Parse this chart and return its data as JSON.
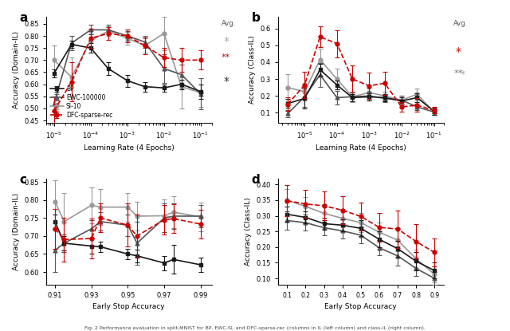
{
  "panel_a": {
    "xlabel": "Learning Rate (4 Epochs)",
    "ylabel": "Accuracy (Domain-IL)",
    "ylim": [
      0.44,
      0.88
    ],
    "x_vals": [
      1e-05,
      3e-05,
      0.0001,
      0.0003,
      0.001,
      0.003,
      0.01,
      0.03,
      0.1
    ],
    "BP": {
      "y": [
        0.645,
        0.765,
        0.75,
        0.665,
        0.615,
        0.59,
        0.585,
        0.6,
        0.57
      ],
      "err": [
        0.015,
        0.015,
        0.02,
        0.025,
        0.025,
        0.02,
        0.015,
        0.02,
        0.03
      ]
    },
    "EWC": {
      "y": [
        0.52,
        0.77,
        0.825,
        0.825,
        0.8,
        0.775,
        0.665,
        0.64,
        0.56
      ],
      "err": [
        0.03,
        0.03,
        0.02,
        0.02,
        0.02,
        0.025,
        0.06,
        0.04,
        0.065
      ]
    },
    "SI": {
      "y": [
        0.7,
        0.63,
        0.78,
        0.82,
        0.79,
        0.76,
        0.81,
        0.59,
        0.565
      ],
      "err": [
        0.06,
        0.08,
        0.03,
        0.02,
        0.025,
        0.03,
        0.07,
        0.09,
        0.06
      ]
    },
    "DFC": {
      "y": [
        0.49,
        0.61,
        0.79,
        0.81,
        0.8,
        0.76,
        0.71,
        0.7,
        0.7
      ],
      "err": [
        0.06,
        0.08,
        0.04,
        0.025,
        0.025,
        0.035,
        0.04,
        0.05,
        0.04
      ]
    }
  },
  "panel_b": {
    "xlabel": "Learning Rate (4 Epochs)",
    "ylabel": "Accuracy (Class-IL)",
    "ylim": [
      0.04,
      0.67
    ],
    "x_vals": [
      3e-06,
      1e-05,
      3e-05,
      0.0001,
      0.0003,
      0.001,
      0.003,
      0.01,
      0.03,
      0.1
    ],
    "BP": {
      "y": [
        0.155,
        0.185,
        0.355,
        0.265,
        0.19,
        0.195,
        0.19,
        0.17,
        0.19,
        0.11
      ],
      "err": [
        0.025,
        0.06,
        0.035,
        0.025,
        0.02,
        0.02,
        0.02,
        0.02,
        0.025,
        0.02
      ]
    },
    "EWC": {
      "y": [
        0.095,
        0.195,
        0.325,
        0.19,
        0.195,
        0.2,
        0.185,
        0.175,
        0.135,
        0.105
      ],
      "err": [
        0.02,
        0.06,
        0.07,
        0.04,
        0.025,
        0.025,
        0.02,
        0.025,
        0.02,
        0.015
      ]
    },
    "SI": {
      "y": [
        0.25,
        0.225,
        0.415,
        0.3,
        0.195,
        0.22,
        0.2,
        0.175,
        0.21,
        0.105
      ],
      "err": [
        0.08,
        0.05,
        0.065,
        0.06,
        0.03,
        0.025,
        0.025,
        0.025,
        0.035,
        0.015
      ]
    },
    "DFC": {
      "y": [
        0.15,
        0.265,
        0.55,
        0.51,
        0.3,
        0.26,
        0.275,
        0.135,
        0.145,
        0.115
      ],
      "err": [
        0.04,
        0.08,
        0.06,
        0.08,
        0.08,
        0.08,
        0.07,
        0.03,
        0.04,
        0.02
      ]
    }
  },
  "panel_c": {
    "xlabel": "Early Stop Accuracy",
    "ylabel": "Accuracy (Domain-IL)",
    "ylim": [
      0.565,
      0.86
    ],
    "x_vals": [
      0.91,
      0.915,
      0.93,
      0.935,
      0.95,
      0.955,
      0.97,
      0.975,
      0.99
    ],
    "BP": {
      "y": [
        0.74,
        0.68,
        0.672,
        0.67,
        0.65,
        0.645,
        0.625,
        0.635,
        0.62
      ],
      "err": [
        0.02,
        0.02,
        0.02,
        0.015,
        0.015,
        0.018,
        0.02,
        0.04,
        0.02
      ]
    },
    "EWC": {
      "y": [
        0.66,
        0.68,
        0.72,
        0.74,
        0.73,
        0.68,
        0.75,
        0.755,
        0.755
      ],
      "err": [
        0.06,
        0.025,
        0.025,
        0.025,
        0.03,
        0.06,
        0.04,
        0.035,
        0.03
      ]
    },
    "SI": {
      "y": [
        0.795,
        0.74,
        0.785,
        0.78,
        0.78,
        0.755,
        0.756,
        0.766,
        0.753
      ],
      "err": [
        0.06,
        0.08,
        0.05,
        0.05,
        0.04,
        0.04,
        0.045,
        0.045,
        0.04
      ]
    },
    "DFC": {
      "y": [
        0.72,
        0.69,
        0.693,
        0.75,
        0.73,
        0.7,
        0.745,
        0.748,
        0.733
      ],
      "err": [
        0.055,
        0.06,
        0.055,
        0.04,
        0.06,
        0.06,
        0.04,
        0.04,
        0.04
      ]
    }
  },
  "panel_d": {
    "xlabel": "Early Stop Accuracy",
    "ylabel": "Accuracy (Class-IL)",
    "ylim": [
      0.08,
      0.42
    ],
    "x_vals": [
      0.1,
      0.2,
      0.3,
      0.4,
      0.5,
      0.6,
      0.7,
      0.8,
      0.9
    ],
    "BP": {
      "y": [
        0.305,
        0.295,
        0.275,
        0.27,
        0.26,
        0.225,
        0.195,
        0.155,
        0.125
      ],
      "err": [
        0.025,
        0.02,
        0.02,
        0.02,
        0.025,
        0.025,
        0.025,
        0.03,
        0.025
      ]
    },
    "EWC": {
      "y": [
        0.285,
        0.278,
        0.262,
        0.252,
        0.238,
        0.198,
        0.172,
        0.132,
        0.1
      ],
      "err": [
        0.03,
        0.025,
        0.025,
        0.025,
        0.025,
        0.025,
        0.03,
        0.025,
        0.02
      ]
    },
    "SI": {
      "y": [
        0.35,
        0.33,
        0.308,
        0.292,
        0.278,
        0.248,
        0.222,
        0.163,
        0.113
      ],
      "err": [
        0.035,
        0.03,
        0.03,
        0.03,
        0.03,
        0.03,
        0.035,
        0.03,
        0.025
      ]
    },
    "DFC": {
      "y": [
        0.348,
        0.338,
        0.332,
        0.318,
        0.298,
        0.263,
        0.258,
        0.218,
        0.183
      ],
      "err": [
        0.05,
        0.045,
        0.045,
        0.045,
        0.045,
        0.045,
        0.06,
        0.055,
        0.045
      ]
    }
  },
  "colors": {
    "BP": "#1a1a1a",
    "EWC": "#555555",
    "SI": "#999999",
    "DFC": "#cc0000"
  },
  "legend_labels": [
    "BP",
    "EWC-100000",
    "SI-10",
    "DFC-sparse-rec"
  ],
  "caption": "Fig. 2 Performance evaluation in split-MNIST for BP, EWC-SI, and DFC-sparse-rec (columns in IL (left column) and class-IL (right column)."
}
